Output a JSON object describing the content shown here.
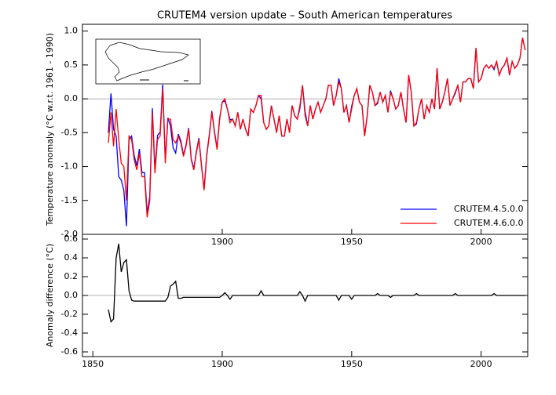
{
  "chart_data": [
    {
      "type": "line",
      "title": "CRUTEM4 version update – South American temperatures",
      "ylabel": "Temperature anomaly (°C w.r.t. 1961 - 1990)",
      "x": [
        1856,
        1857,
        1858,
        1859,
        1860,
        1861,
        1862,
        1863,
        1864,
        1865,
        1866,
        1867,
        1868,
        1869,
        1870,
        1871,
        1872,
        1873,
        1874,
        1875,
        1876,
        1877,
        1878,
        1879,
        1880,
        1881,
        1882,
        1883,
        1884,
        1885,
        1886,
        1887,
        1888,
        1889,
        1890,
        1891,
        1892,
        1893,
        1894,
        1895,
        1896,
        1897,
        1898,
        1899,
        1900,
        1901,
        1902,
        1903,
        1904,
        1905,
        1906,
        1907,
        1908,
        1909,
        1910,
        1911,
        1912,
        1913,
        1914,
        1915,
        1916,
        1917,
        1918,
        1919,
        1920,
        1921,
        1922,
        1923,
        1924,
        1925,
        1926,
        1927,
        1928,
        1929,
        1930,
        1931,
        1932,
        1933,
        1934,
        1935,
        1936,
        1937,
        1938,
        1939,
        1940,
        1941,
        1942,
        1943,
        1944,
        1945,
        1946,
        1947,
        1948,
        1949,
        1950,
        1951,
        1952,
        1953,
        1954,
        1955,
        1956,
        1957,
        1958,
        1959,
        1960,
        1961,
        1962,
        1963,
        1964,
        1965,
        1966,
        1967,
        1968,
        1969,
        1970,
        1971,
        1972,
        1973,
        1974,
        1975,
        1976,
        1977,
        1978,
        1979,
        1980,
        1981,
        1982,
        1983,
        1984,
        1985,
        1986,
        1987,
        1988,
        1989,
        1990,
        1991,
        1992,
        1993,
        1994,
        1995,
        1996,
        1997,
        1998,
        1999,
        2000,
        2001,
        2002,
        2003,
        2004,
        2005,
        2006,
        2007,
        2008,
        2009,
        2010,
        2011,
        2012,
        2013,
        2014,
        2015,
        2016,
        2017
      ],
      "series": [
        {
          "name": "CRUTEM.4.5.0.0",
          "color": "#0000ff",
          "values": [
            -0.5,
            0.08,
            -0.45,
            -0.55,
            -1.15,
            -1.2,
            -1.35,
            -1.88,
            -0.6,
            -0.55,
            -0.84,
            -0.99,
            -0.74,
            -1.09,
            -1.09,
            -1.69,
            -1.44,
            -0.14,
            -1.04,
            -0.54,
            -0.49,
            0.21,
            -0.89,
            -0.28,
            -0.4,
            -0.72,
            -0.8,
            -0.52,
            -0.62,
            -0.83,
            -0.68,
            -0.43,
            -0.88,
            -1.03,
            -0.78,
            -0.58,
            -0.98,
            -1.33,
            -0.83,
            -0.53,
            -0.18,
            -0.48,
            -0.73,
            -0.28,
            -0.05,
            -0.03,
            -0.15,
            -0.31,
            -0.3,
            -0.4,
            -0.2,
            -0.45,
            -0.3,
            -0.45,
            -0.55,
            -0.15,
            -0.2,
            -0.1,
            0.05,
            0.0,
            -0.35,
            -0.45,
            -0.4,
            -0.1,
            -0.3,
            -0.5,
            -0.25,
            -0.55,
            -0.55,
            -0.3,
            -0.5,
            -0.1,
            -0.25,
            -0.3,
            -0.14,
            0.2,
            -0.19,
            -0.4,
            -0.1,
            -0.3,
            -0.15,
            -0.05,
            -0.2,
            -0.1,
            0.0,
            0.2,
            0.2,
            -0.1,
            0.05,
            0.3,
            0.15,
            -0.2,
            -0.1,
            -0.35,
            -0.11,
            0.05,
            0.15,
            -0.05,
            -0.1,
            -0.55,
            -0.25,
            0.2,
            0.1,
            -0.1,
            -0.07,
            0.1,
            -0.05,
            0.05,
            -0.2,
            0.12,
            0.0,
            -0.15,
            -0.1,
            0.1,
            -0.15,
            -0.35,
            0.35,
            0.1,
            -0.4,
            -0.37,
            -0.15,
            0.0,
            -0.3,
            -0.1,
            -0.2,
            0.0,
            -0.15,
            0.45,
            -0.15,
            -0.05,
            0.1,
            0.3,
            -0.1,
            0.0,
            0.08,
            0.2,
            -0.05,
            0.25,
            0.25,
            0.3,
            0.3,
            0.15,
            0.75,
            0.25,
            0.3,
            0.45,
            0.5,
            0.45,
            0.5,
            0.43,
            0.55,
            0.35,
            0.45,
            0.5,
            0.6,
            0.35,
            0.55,
            0.45,
            0.5,
            0.6,
            0.9,
            0.72
          ]
        },
        {
          "name": "CRUTEM.4.6.0.0",
          "color": "#ff0000",
          "values": [
            -0.65,
            -0.2,
            -0.7,
            -0.15,
            -0.6,
            -0.95,
            -1.0,
            -1.5,
            -0.55,
            -0.6,
            -0.9,
            -1.05,
            -0.8,
            -1.15,
            -1.15,
            -1.75,
            -1.5,
            -0.2,
            -1.1,
            -0.6,
            -0.55,
            0.15,
            -0.95,
            -0.3,
            -0.3,
            -0.6,
            -0.65,
            -0.55,
            -0.65,
            -0.85,
            -0.7,
            -0.45,
            -0.9,
            -1.05,
            -0.8,
            -0.6,
            -1.0,
            -1.35,
            -0.85,
            -0.55,
            -0.2,
            -0.5,
            -0.75,
            -0.3,
            -0.05,
            0.0,
            -0.15,
            -0.35,
            -0.3,
            -0.4,
            -0.2,
            -0.45,
            -0.3,
            -0.45,
            -0.55,
            -0.15,
            -0.2,
            -0.1,
            0.05,
            0.05,
            -0.35,
            -0.45,
            -0.4,
            -0.1,
            -0.3,
            -0.5,
            -0.25,
            -0.55,
            -0.55,
            -0.3,
            -0.5,
            -0.1,
            -0.25,
            -0.3,
            -0.1,
            0.2,
            -0.25,
            -0.4,
            -0.1,
            -0.3,
            -0.15,
            -0.05,
            -0.2,
            -0.1,
            0.0,
            0.2,
            0.2,
            -0.1,
            0.05,
            0.25,
            0.15,
            -0.2,
            -0.1,
            -0.35,
            -0.15,
            0.05,
            0.15,
            -0.05,
            -0.1,
            -0.55,
            -0.25,
            0.2,
            0.1,
            -0.1,
            -0.05,
            0.1,
            -0.05,
            0.05,
            -0.2,
            0.1,
            0.0,
            -0.15,
            -0.1,
            0.1,
            -0.15,
            -0.35,
            0.35,
            0.1,
            -0.4,
            -0.35,
            -0.15,
            0.0,
            -0.3,
            -0.1,
            -0.2,
            0.0,
            -0.15,
            0.45,
            -0.15,
            -0.05,
            0.1,
            0.3,
            -0.1,
            0.0,
            0.1,
            0.2,
            -0.05,
            0.25,
            0.25,
            0.3,
            0.3,
            0.15,
            0.75,
            0.25,
            0.3,
            0.45,
            0.5,
            0.45,
            0.5,
            0.45,
            0.55,
            0.35,
            0.45,
            0.5,
            0.6,
            0.35,
            0.55,
            0.45,
            0.5,
            0.6,
            0.9,
            0.72
          ]
        }
      ],
      "xlim": [
        1846,
        2018
      ],
      "xticks": [
        1900,
        1950,
        2000
      ],
      "ylim": [
        -2.0,
        1.1
      ],
      "yticks": [
        {
          "value": -2.0,
          "label": "-2.0"
        },
        -1.5,
        {
          "value": -1.0,
          "label": "-1.0"
        },
        -0.5,
        {
          "value": 0.0,
          "label": "0.0"
        },
        0.5,
        {
          "value": 1.0,
          "label": "1.0"
        }
      ],
      "legend": "lower right"
    },
    {
      "type": "line",
      "ylabel": "Anomaly difference (°C)",
      "x": [
        1856,
        1857,
        1858,
        1859,
        1860,
        1861,
        1862,
        1863,
        1864,
        1865,
        1866,
        1867,
        1868,
        1869,
        1870,
        1871,
        1872,
        1873,
        1874,
        1875,
        1876,
        1877,
        1878,
        1879,
        1880,
        1881,
        1882,
        1883,
        1884,
        1885,
        1886,
        1887,
        1888,
        1889,
        1890,
        1891,
        1892,
        1893,
        1894,
        1895,
        1896,
        1897,
        1898,
        1899,
        1900,
        1901,
        1902,
        1903,
        1904,
        1905,
        1906,
        1907,
        1908,
        1909,
        1910,
        1911,
        1912,
        1913,
        1914,
        1915,
        1916,
        1917,
        1918,
        1919,
        1920,
        1921,
        1922,
        1923,
        1924,
        1925,
        1926,
        1927,
        1928,
        1929,
        1930,
        1931,
        1932,
        1933,
        1934,
        1935,
        1936,
        1937,
        1938,
        1939,
        1940,
        1941,
        1942,
        1943,
        1944,
        1945,
        1946,
        1947,
        1948,
        1949,
        1950,
        1951,
        1952,
        1953,
        1954,
        1955,
        1956,
        1957,
        1958,
        1959,
        1960,
        1961,
        1962,
        1963,
        1964,
        1965,
        1966,
        1967,
        1968,
        1969,
        1970,
        1971,
        1972,
        1973,
        1974,
        1975,
        1976,
        1977,
        1978,
        1979,
        1980,
        1981,
        1982,
        1983,
        1984,
        1985,
        1986,
        1987,
        1988,
        1989,
        1990,
        1991,
        1992,
        1993,
        1994,
        1995,
        1996,
        1997,
        1998,
        1999,
        2000,
        2001,
        2002,
        2003,
        2004,
        2005,
        2006,
        2007,
        2008,
        2009,
        2010,
        2011,
        2012,
        2013,
        2014,
        2015,
        2016,
        2017
      ],
      "series": [
        {
          "color": "#000000",
          "values": [
            -0.15,
            -0.28,
            -0.25,
            0.4,
            0.55,
            0.25,
            0.35,
            0.38,
            0.05,
            -0.05,
            -0.06,
            -0.06,
            -0.06,
            -0.06,
            -0.06,
            -0.06,
            -0.06,
            -0.06,
            -0.06,
            -0.06,
            -0.06,
            -0.06,
            -0.06,
            -0.02,
            0.1,
            0.12,
            0.15,
            -0.03,
            -0.03,
            -0.02,
            -0.02,
            -0.02,
            -0.02,
            -0.02,
            -0.02,
            -0.02,
            -0.02,
            -0.02,
            -0.02,
            -0.02,
            -0.02,
            -0.02,
            -0.02,
            -0.02,
            0,
            0.03,
            0,
            -0.04,
            0,
            0,
            0,
            0,
            0,
            0,
            0,
            0,
            0,
            0,
            0,
            0.05,
            0,
            0,
            0,
            0,
            0,
            0,
            0,
            0,
            0,
            0,
            0,
            0,
            0,
            0,
            0.04,
            0,
            -0.06,
            0,
            0,
            0,
            0,
            0,
            0,
            0,
            0,
            0,
            0,
            0,
            0,
            -0.05,
            0,
            0,
            0,
            0,
            -0.04,
            0,
            0,
            0,
            0,
            0,
            0,
            0,
            0,
            0,
            0.02,
            0,
            0,
            0,
            0,
            -0.02,
            0,
            0,
            0,
            0,
            0,
            0,
            0,
            0,
            0,
            0.02,
            0,
            0,
            0,
            0,
            0,
            0,
            0,
            0,
            0,
            0,
            0,
            0,
            0,
            0,
            0.02,
            0,
            0,
            0,
            0,
            0,
            0,
            0,
            0,
            0,
            0,
            0,
            0,
            0,
            0,
            0.02,
            0,
            0,
            0,
            0,
            0,
            0,
            0,
            0,
            0,
            0,
            0,
            0
          ]
        }
      ],
      "xlim": [
        1846,
        2018
      ],
      "xticks": [
        1850,
        1900,
        1950,
        2000
      ],
      "ylim": [
        -0.65,
        0.65
      ],
      "yticks": [
        -0.6,
        -0.4,
        -0.2,
        {
          "value": 0.0,
          "label": "0.0"
        },
        0.2,
        0.4,
        0.6
      ]
    }
  ]
}
